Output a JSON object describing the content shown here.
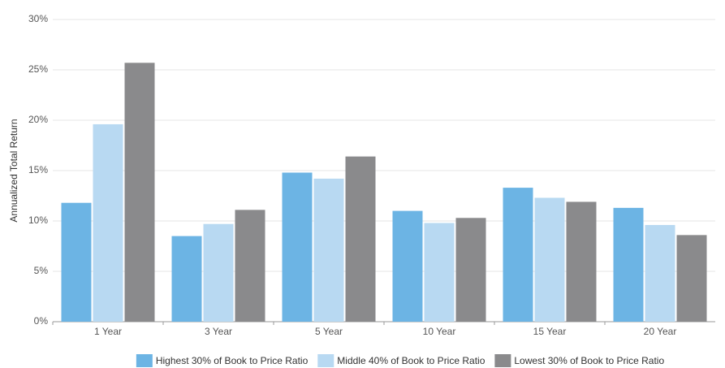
{
  "chart_data": {
    "type": "bar",
    "y_label": "Annualized Total Return",
    "categories": [
      "1 Year",
      "3 Year",
      "5 Year",
      "10 Year",
      "15 Year",
      "20 Year"
    ],
    "series": [
      {
        "name": "Highest 30% of Book to Price Ratio",
        "color": "#6cb4e4",
        "values": [
          11.8,
          8.5,
          14.8,
          11.0,
          13.3,
          11.3
        ]
      },
      {
        "name": "Middle 40% of Book to Price Ratio",
        "color": "#b8d9f2",
        "values": [
          19.6,
          9.7,
          14.2,
          9.8,
          12.3,
          9.6
        ]
      },
      {
        "name": "Lowest 30% of Book to Price Ratio",
        "color": "#8a8a8c",
        "values": [
          25.7,
          11.1,
          16.4,
          10.3,
          11.9,
          8.6
        ]
      }
    ],
    "ylim": [
      0,
      30
    ],
    "yticks": [
      {
        "value": 0,
        "label": "0%"
      },
      {
        "value": 5,
        "label": "5%"
      },
      {
        "value": 10,
        "label": "10%"
      },
      {
        "value": 15,
        "label": "15%"
      },
      {
        "value": 20,
        "label": "20%"
      },
      {
        "value": 25,
        "label": "25%"
      },
      {
        "value": 30,
        "label": "30%"
      }
    ],
    "grid": true
  }
}
